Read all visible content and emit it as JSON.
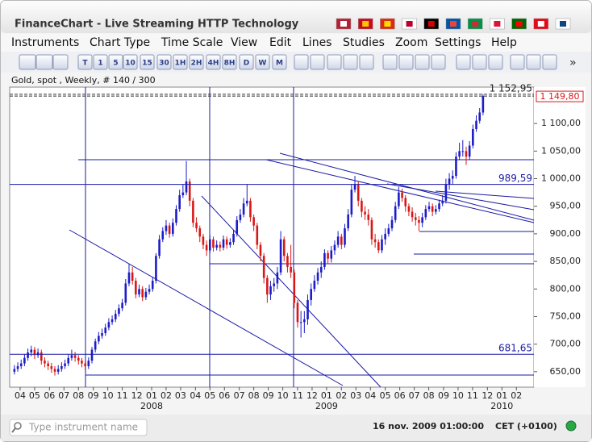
{
  "window": {
    "title": "FinanceChart - Live Streaming HTTP Technology"
  },
  "menu": [
    "Instruments",
    "Chart Type",
    "Time Scale",
    "View",
    "Edit",
    "Lines",
    "Studies",
    "Zoom",
    "Settings",
    "Help"
  ],
  "toolbar": [
    "T",
    "1",
    "5",
    "10",
    "15",
    "30",
    "1H",
    "2H",
    "4H",
    "8H",
    "D",
    "W",
    "M"
  ],
  "chart_data": {
    "type": "candlestick",
    "title": "Gold, spot , Weekly, # 140 / 300",
    "open": [
      650,
      655,
      660,
      665,
      675,
      685,
      690,
      680,
      685,
      670,
      665,
      660,
      655,
      650,
      655,
      660,
      665,
      675,
      680,
      675,
      670,
      665,
      660,
      670,
      690,
      705,
      715,
      720,
      730,
      740,
      745,
      755,
      765,
      775,
      810,
      830,
      815,
      790,
      800,
      785,
      795,
      800,
      815,
      860,
      890,
      905,
      915,
      900,
      920,
      945,
      970,
      975,
      995,
      960,
      920,
      910,
      895,
      880,
      870,
      890,
      875,
      880,
      875,
      890,
      880,
      885,
      900,
      925,
      935,
      955,
      960,
      930,
      915,
      880,
      860,
      820,
      790,
      805,
      810,
      830,
      890,
      860,
      840,
      830,
      775,
      740,
      740,
      745,
      780,
      800,
      815,
      830,
      840,
      865,
      855,
      870,
      880,
      895,
      880,
      910,
      935,
      980,
      990,
      960,
      940,
      935,
      925,
      890,
      885,
      870,
      890,
      900,
      910,
      925,
      950,
      975,
      965,
      950,
      940,
      930,
      925,
      920,
      930,
      945,
      950,
      940,
      945,
      955,
      960,
      990,
      1000,
      1005,
      1040,
      1050,
      1050,
      1040,
      1060,
      1090,
      1105,
      1120
    ],
    "high": [
      662,
      667,
      672,
      682,
      692,
      697,
      695,
      692,
      690,
      676,
      670,
      666,
      660,
      662,
      667,
      672,
      682,
      690,
      686,
      680,
      675,
      670,
      676,
      695,
      710,
      722,
      728,
      737,
      747,
      752,
      762,
      772,
      782,
      818,
      845,
      840,
      820,
      808,
      805,
      802,
      808,
      822,
      865,
      898,
      912,
      925,
      920,
      928,
      952,
      980,
      990,
      1032,
      1000,
      965,
      930,
      915,
      900,
      888,
      898,
      895,
      888,
      886,
      897,
      895,
      892,
      907,
      932,
      945,
      965,
      990,
      965,
      935,
      920,
      885,
      865,
      825,
      815,
      820,
      840,
      905,
      895,
      865,
      880,
      835,
      780,
      760,
      760,
      790,
      810,
      825,
      838,
      850,
      872,
      870,
      878,
      888,
      905,
      900,
      918,
      945,
      990,
      1005,
      995,
      965,
      950,
      945,
      930,
      900,
      890,
      898,
      910,
      918,
      932,
      958,
      985,
      982,
      970,
      955,
      948,
      938,
      932,
      938,
      952,
      958,
      955,
      952,
      962,
      970,
      1000,
      1010,
      1015,
      1048,
      1065,
      1070,
      1058,
      1068,
      1098,
      1115,
      1128,
      1152.95
    ],
    "low": [
      645,
      650,
      655,
      660,
      670,
      678,
      673,
      675,
      663,
      658,
      653,
      648,
      643,
      645,
      650,
      655,
      660,
      670,
      668,
      663,
      658,
      653,
      655,
      665,
      685,
      700,
      710,
      715,
      725,
      735,
      740,
      750,
      760,
      770,
      805,
      808,
      783,
      785,
      778,
      780,
      790,
      795,
      810,
      855,
      885,
      898,
      893,
      895,
      915,
      940,
      965,
      970,
      950,
      912,
      903,
      885,
      872,
      860,
      865,
      868,
      870,
      868,
      870,
      873,
      875,
      880,
      895,
      920,
      930,
      950,
      922,
      905,
      872,
      850,
      810,
      775,
      780,
      795,
      800,
      825,
      850,
      830,
      820,
      765,
      730,
      712,
      720,
      735,
      770,
      795,
      808,
      820,
      835,
      845,
      848,
      862,
      875,
      872,
      875,
      905,
      930,
      975,
      950,
      930,
      925,
      915,
      880,
      875,
      865,
      865,
      880,
      895,
      905,
      920,
      945,
      958,
      940,
      932,
      922,
      915,
      905,
      912,
      925,
      940,
      932,
      935,
      940,
      950,
      955,
      980,
      990,
      1000,
      1035,
      1040,
      1025,
      1035,
      1055,
      1085,
      1100,
      1115
    ],
    "close": [
      655,
      660,
      665,
      675,
      685,
      690,
      680,
      685,
      670,
      665,
      660,
      655,
      650,
      655,
      660,
      665,
      675,
      680,
      675,
      670,
      665,
      660,
      670,
      690,
      705,
      715,
      720,
      730,
      740,
      745,
      755,
      765,
      775,
      810,
      830,
      815,
      790,
      800,
      785,
      795,
      800,
      815,
      860,
      890,
      905,
      915,
      900,
      920,
      945,
      970,
      975,
      995,
      960,
      920,
      910,
      895,
      880,
      870,
      890,
      875,
      880,
      875,
      890,
      880,
      885,
      900,
      925,
      935,
      955,
      960,
      930,
      915,
      880,
      860,
      820,
      790,
      805,
      810,
      830,
      890,
      860,
      840,
      830,
      775,
      740,
      740,
      745,
      780,
      800,
      815,
      830,
      840,
      865,
      855,
      870,
      880,
      895,
      880,
      910,
      935,
      980,
      990,
      960,
      940,
      935,
      925,
      890,
      885,
      870,
      890,
      900,
      910,
      925,
      950,
      975,
      965,
      950,
      940,
      930,
      925,
      920,
      930,
      945,
      950,
      940,
      945,
      955,
      960,
      990,
      1000,
      1005,
      1040,
      1050,
      1050,
      1040,
      1060,
      1090,
      1105,
      1120,
      1149.8
    ],
    "up_color": "#1c1cc8",
    "down_color": "#d81818",
    "line_color": "#1a1aa6",
    "xlim": [
      -1.4,
      154.1
    ],
    "xticks": [
      {
        "value": 1.7,
        "label": "04"
      },
      {
        "value": 6.0,
        "label": "05"
      },
      {
        "value": 10.4,
        "label": "06"
      },
      {
        "value": 14.7,
        "label": "07"
      },
      {
        "value": 19.0,
        "label": "08"
      },
      {
        "value": 23.4,
        "label": "09"
      },
      {
        "value": 27.7,
        "label": "10"
      },
      {
        "value": 32.0,
        "label": "11"
      },
      {
        "value": 36.3,
        "label": "12"
      },
      {
        "value": 40.7,
        "label": "01"
      },
      {
        "value": 45.0,
        "label": "02"
      },
      {
        "value": 49.3,
        "label": "03"
      },
      {
        "value": 53.7,
        "label": "04"
      },
      {
        "value": 58.0,
        "label": "05"
      },
      {
        "value": 62.3,
        "label": "06"
      },
      {
        "value": 66.7,
        "label": "07"
      },
      {
        "value": 71.0,
        "label": "08"
      },
      {
        "value": 75.3,
        "label": "09"
      },
      {
        "value": 79.6,
        "label": "10"
      },
      {
        "value": 84.0,
        "label": "11"
      },
      {
        "value": 88.3,
        "label": "12"
      },
      {
        "value": 92.6,
        "label": "01"
      },
      {
        "value": 97.0,
        "label": "02"
      },
      {
        "value": 101.3,
        "label": "03"
      },
      {
        "value": 105.6,
        "label": "04"
      },
      {
        "value": 110.0,
        "label": "05"
      },
      {
        "value": 114.3,
        "label": "06"
      },
      {
        "value": 118.6,
        "label": "07"
      },
      {
        "value": 122.9,
        "label": "08"
      },
      {
        "value": 127.3,
        "label": "09"
      },
      {
        "value": 131.6,
        "label": "10"
      },
      {
        "value": 135.9,
        "label": "11"
      },
      {
        "value": 140.3,
        "label": "12"
      },
      {
        "value": 144.6,
        "label": "01"
      },
      {
        "value": 148.9,
        "label": "02"
      }
    ],
    "year_ticks": [
      {
        "value": 40.7,
        "label": "2008"
      },
      {
        "value": 92.6,
        "label": "2009"
      },
      {
        "value": 144.6,
        "label": "2010"
      }
    ],
    "ylim": [
      622,
      1166
    ],
    "yticks": [
      {
        "value": 650,
        "label": "650,00"
      },
      {
        "value": 700,
        "label": "700,00"
      },
      {
        "value": 750,
        "label": "750,00"
      },
      {
        "value": 800,
        "label": "800,00"
      },
      {
        "value": 850,
        "label": "850,00"
      },
      {
        "value": 900,
        "label": "900,00"
      },
      {
        "value": 950,
        "label": "950,00"
      },
      {
        "value": 1000,
        "label": "1 000,00"
      },
      {
        "value": 1050,
        "label": "1 050,00"
      },
      {
        "value": 1100,
        "label": "1 100,00"
      }
    ],
    "annotations": [
      {
        "value": 1152.95,
        "label": "1 152,95",
        "style": "dashed"
      },
      {
        "value": 1149.8,
        "label": "1 149,80",
        "style": "price-box"
      },
      {
        "value": 989.59,
        "label": "989,59",
        "style": "line"
      },
      {
        "value": 681.65,
        "label": "681,65",
        "style": "line"
      }
    ]
  },
  "status_bar": {
    "search_placeholder": "Type instrument name",
    "datetime": "16 nov. 2009 01:00:00",
    "timezone": "CET (+0100)"
  }
}
